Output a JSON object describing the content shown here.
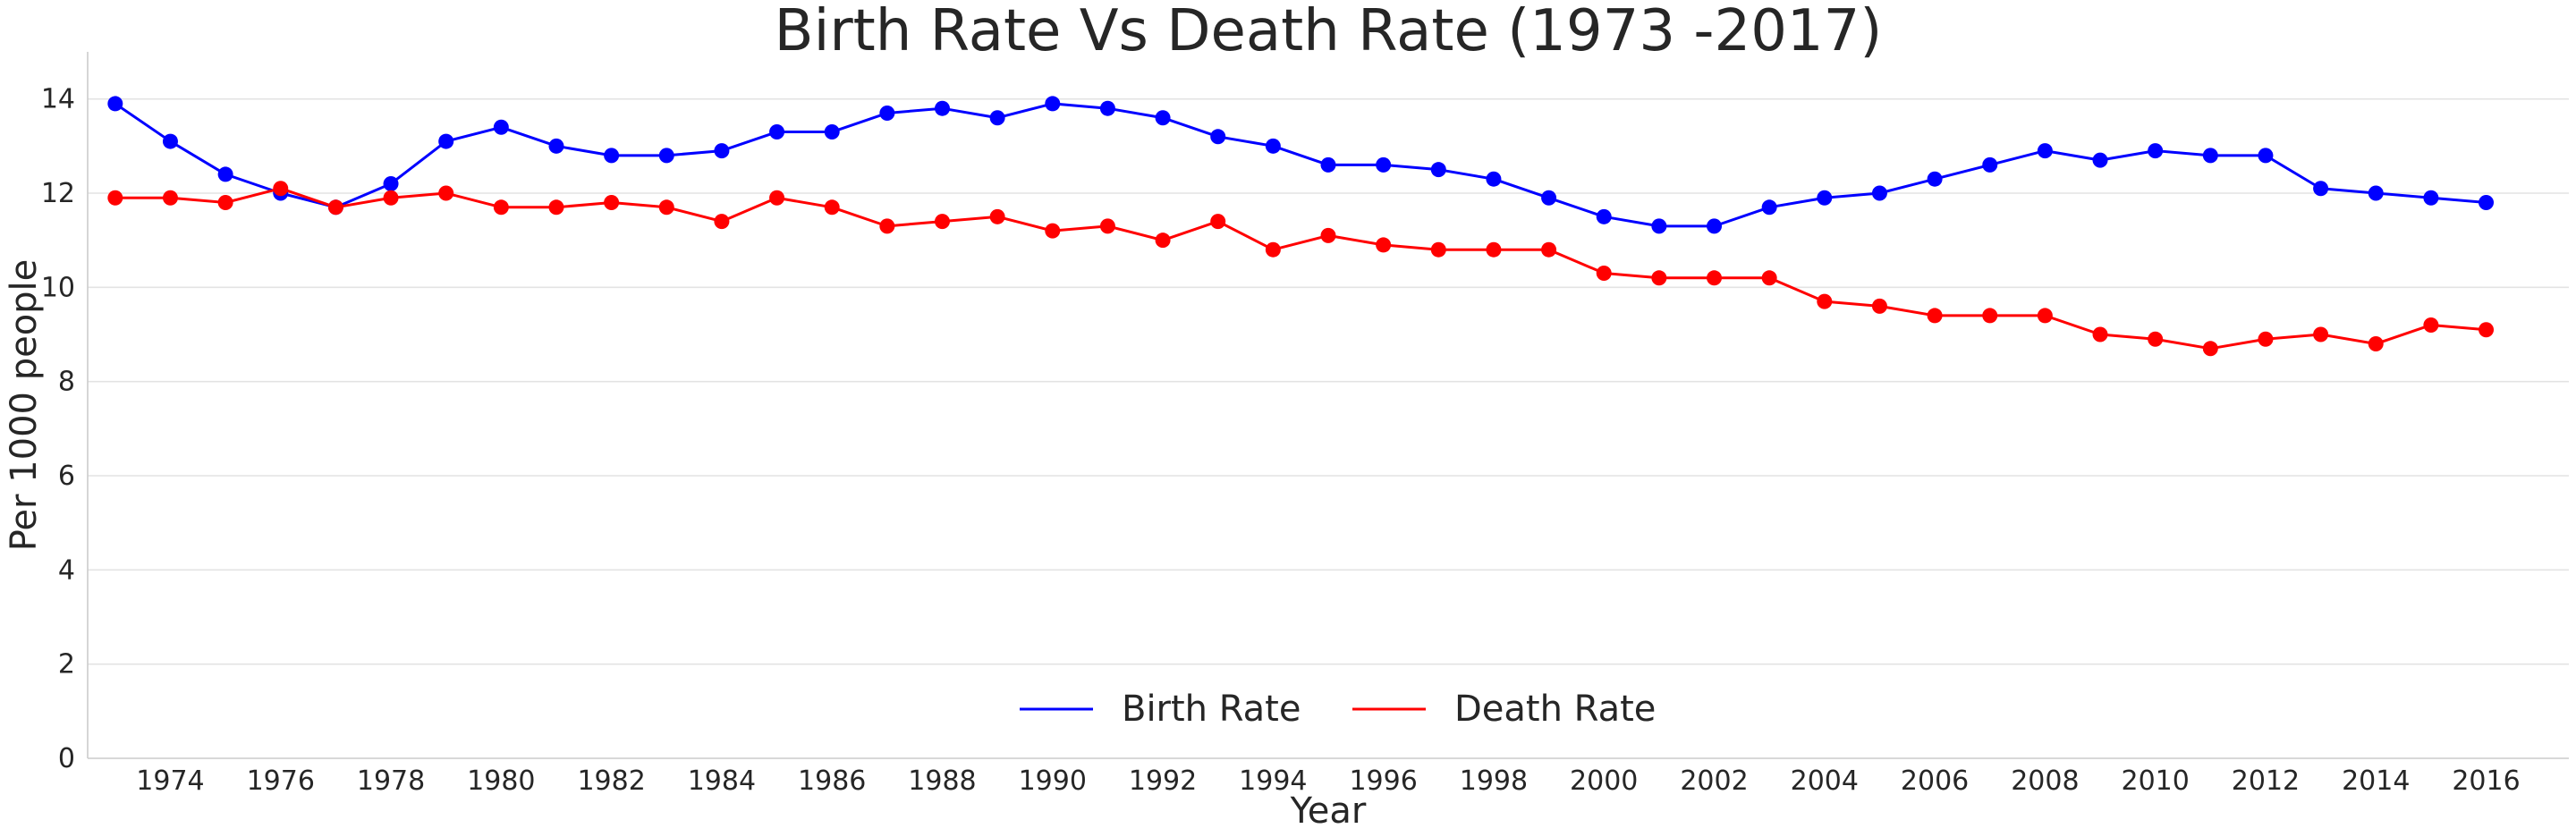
{
  "chart_data": {
    "type": "line",
    "title": "Birth Rate Vs Death Rate (1973 -2017)",
    "xlabel": "Year",
    "ylabel": "Per 1000 people",
    "x": [
      1973,
      1974,
      1975,
      1976,
      1977,
      1978,
      1979,
      1980,
      1981,
      1982,
      1983,
      1984,
      1985,
      1986,
      1987,
      1988,
      1989,
      1990,
      1991,
      1992,
      1993,
      1994,
      1995,
      1996,
      1997,
      1998,
      1999,
      2000,
      2001,
      2002,
      2003,
      2004,
      2005,
      2006,
      2007,
      2008,
      2009,
      2010,
      2011,
      2012,
      2013,
      2014,
      2015,
      2016
    ],
    "xticks": [
      "1974",
      "1976",
      "1978",
      "1980",
      "1982",
      "1984",
      "1986",
      "1988",
      "1990",
      "1992",
      "1994",
      "1996",
      "1998",
      "2000",
      "2002",
      "2004",
      "2006",
      "2008",
      "2010",
      "2012",
      "2014",
      "2016"
    ],
    "xtick_values": [
      1974,
      1976,
      1978,
      1980,
      1982,
      1984,
      1986,
      1988,
      1990,
      1992,
      1994,
      1996,
      1998,
      2000,
      2002,
      2004,
      2006,
      2008,
      2010,
      2012,
      2014,
      2016
    ],
    "yticks": [
      "0",
      "2",
      "4",
      "6",
      "8",
      "10",
      "12",
      "14"
    ],
    "ytick_values": [
      0,
      2,
      4,
      6,
      8,
      10,
      12,
      14
    ],
    "xlim": [
      1972.5,
      2017.5
    ],
    "ylim": [
      0,
      15
    ],
    "grid": "horizontal",
    "legend": "bottom-center",
    "series": [
      {
        "name": "Birth Rate",
        "color": "#0000ff",
        "values": [
          13.9,
          13.1,
          12.4,
          12.0,
          11.7,
          12.2,
          13.1,
          13.4,
          13.0,
          12.8,
          12.8,
          12.9,
          13.3,
          13.3,
          13.7,
          13.8,
          13.6,
          13.9,
          13.8,
          13.6,
          13.2,
          13.0,
          12.6,
          12.6,
          12.5,
          12.3,
          11.9,
          11.5,
          11.3,
          11.3,
          11.7,
          11.9,
          12.0,
          12.3,
          12.6,
          12.9,
          12.7,
          12.9,
          12.8,
          12.8,
          12.1,
          12.0,
          11.9,
          11.8
        ]
      },
      {
        "name": "Death Rate",
        "color": "#ff0000",
        "values": [
          11.9,
          11.9,
          11.8,
          12.1,
          11.7,
          11.9,
          12.0,
          11.7,
          11.7,
          11.8,
          11.7,
          11.4,
          11.9,
          11.7,
          11.3,
          11.4,
          11.5,
          11.2,
          11.3,
          11.0,
          11.4,
          10.8,
          11.1,
          10.9,
          10.8,
          10.8,
          10.8,
          10.3,
          10.2,
          10.2,
          10.2,
          9.7,
          9.6,
          9.4,
          9.4,
          9.4,
          9.0,
          8.9,
          8.7,
          8.9,
          9.0,
          8.8,
          9.2,
          9.1
        ]
      }
    ]
  }
}
